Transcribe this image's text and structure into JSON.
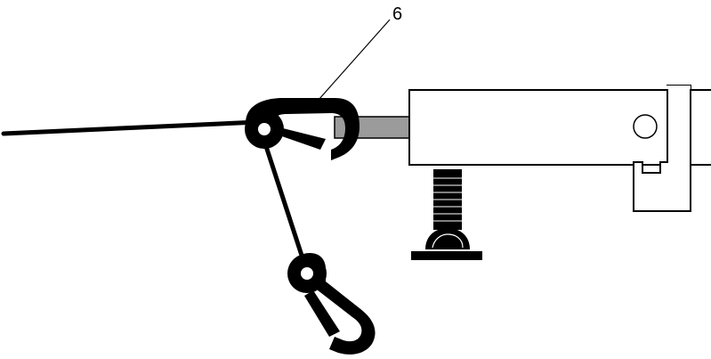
{
  "figure": {
    "reference_numeral": "6"
  },
  "colors": {
    "line": "#000000",
    "background": "#ffffff",
    "rod": "#9b9b9b"
  }
}
